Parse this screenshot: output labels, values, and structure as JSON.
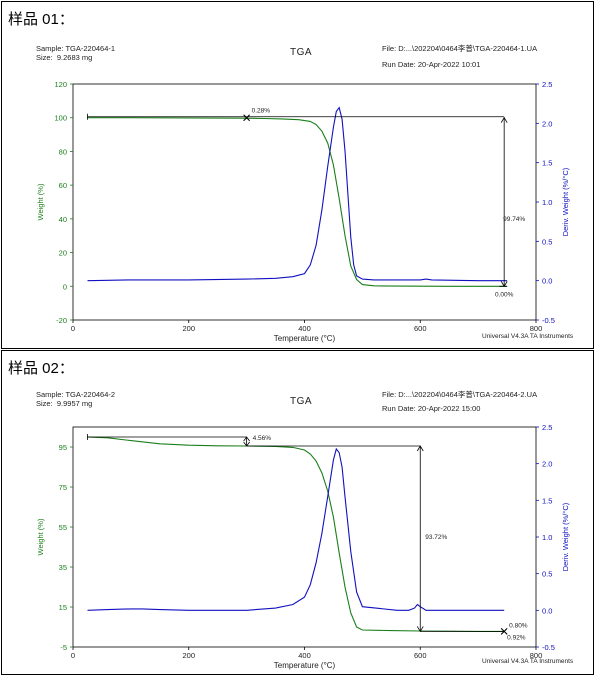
{
  "charts": [
    {
      "panel_title": "样品 01：",
      "sample_label": "Sample: TGA-220464-1",
      "size_label": "Size:  9.2683 mg",
      "header_center": "TGA",
      "file_label": "File: D:...\\202204\\0464李普\\TGA-220464-1.UA",
      "run_date_label": "Run Date: 20-Apr-2022 10:01",
      "footer_label": "Universal V4.3A TA Instruments"
    },
    {
      "panel_title": "样品 02：",
      "sample_label": "Sample: TGA-220464-2",
      "size_label": "Size:  9.9957 mg",
      "header_center": "TGA",
      "file_label": "File: D:...\\202204\\0464李普\\TGA-220464-2.UA",
      "run_date_label": "Run Date: 20-Apr-2022 15:00",
      "footer_label": "Universal V4.3A TA Instruments"
    }
  ],
  "colors": {
    "weight": "#1a7f1a",
    "deriv": "#1010c0",
    "annot": "#000000",
    "frame": "#000000"
  },
  "chart_data": [
    {
      "type": "line",
      "xlabel": "Temperature (°C)",
      "ylabel": "Weight (%)",
      "y2label": "Deriv. Weight (%/°C)",
      "xlim": [
        0,
        800
      ],
      "ylim": [
        -20,
        120
      ],
      "y2lim": [
        -0.5,
        2.5
      ],
      "xticks": [
        0,
        200,
        400,
        600,
        800
      ],
      "yticks": [
        -20,
        0,
        20,
        40,
        60,
        80,
        100,
        120
      ],
      "y2ticks": [
        -0.5,
        0.0,
        0.5,
        1.0,
        1.5,
        2.0,
        2.5
      ],
      "series": [
        {
          "axis": "left",
          "color": "#1a7f1a",
          "x": [
            25,
            100,
            200,
            300,
            330,
            360,
            390,
            410,
            420,
            430,
            440,
            450,
            460,
            470,
            480,
            490,
            500,
            520,
            560,
            650,
            750
          ],
          "values": [
            100,
            100,
            99.9,
            99.72,
            99.55,
            99.3,
            98.8,
            97.8,
            96,
            92,
            85,
            72,
            52,
            30,
            12,
            4,
            1,
            0.3,
            0.1,
            0.0,
            0.0
          ]
        },
        {
          "axis": "right",
          "color": "#1010c0",
          "x": [
            25,
            100,
            200,
            300,
            350,
            380,
            400,
            410,
            420,
            430,
            440,
            450,
            455,
            460,
            465,
            470,
            475,
            480,
            485,
            490,
            500,
            520,
            600,
            610,
            620,
            700,
            750
          ],
          "values": [
            0.0,
            0.01,
            0.01,
            0.02,
            0.03,
            0.05,
            0.09,
            0.2,
            0.45,
            0.9,
            1.45,
            1.95,
            2.15,
            2.2,
            2.05,
            1.65,
            1.1,
            0.55,
            0.2,
            0.06,
            0.02,
            0.01,
            0.01,
            0.02,
            0.01,
            0.0,
            0.0
          ]
        }
      ],
      "annotations": [
        {
          "text": "0.28%",
          "x": 300,
          "y": 100
        },
        {
          "text": "99.74%",
          "x": 745,
          "y": 50
        },
        {
          "text": "0.00%",
          "x": 745,
          "y": -5
        }
      ]
    },
    {
      "type": "line",
      "xlabel": "Temperature (°C)",
      "ylabel": "Weight (%)",
      "y2label": "Deriv. Weight (%/°C)",
      "xlim": [
        0,
        800
      ],
      "ylim": [
        -5,
        105
      ],
      "y2lim": [
        -0.5,
        2.5
      ],
      "xticks": [
        0,
        200,
        400,
        600,
        800
      ],
      "yticks": [
        -5,
        15,
        35,
        55,
        75,
        95
      ],
      "y2ticks": [
        -0.5,
        0.0,
        0.5,
        1.0,
        1.5,
        2.0,
        2.5
      ],
      "series": [
        {
          "axis": "left",
          "color": "#1a7f1a",
          "x": [
            25,
            60,
            100,
            150,
            200,
            250,
            300,
            350,
            380,
            400,
            410,
            420,
            430,
            440,
            450,
            460,
            470,
            480,
            490,
            500,
            550,
            600,
            650,
            700,
            745
          ],
          "values": [
            100,
            99.6,
            98.2,
            96.6,
            95.9,
            95.6,
            95.5,
            95.3,
            94.8,
            93.5,
            91.5,
            88,
            82,
            73,
            60,
            42,
            25,
            12,
            5,
            3.5,
            3.2,
            3,
            2.9,
            2.8,
            2.8
          ]
        },
        {
          "axis": "right",
          "color": "#1010c0",
          "x": [
            25,
            60,
            100,
            120,
            150,
            200,
            250,
            300,
            350,
            380,
            400,
            410,
            420,
            430,
            440,
            450,
            455,
            460,
            465,
            470,
            480,
            490,
            500,
            560,
            580,
            590,
            595,
            600,
            610,
            650,
            700,
            745
          ],
          "values": [
            0.0,
            0.01,
            0.02,
            0.02,
            0.01,
            0.0,
            0.0,
            0.0,
            0.03,
            0.08,
            0.18,
            0.35,
            0.65,
            1.05,
            1.55,
            2.05,
            2.2,
            2.15,
            1.95,
            1.55,
            0.8,
            0.25,
            0.05,
            0.0,
            0.0,
            0.03,
            0.08,
            0.05,
            0.0,
            0.0,
            0.0,
            0.0
          ]
        }
      ],
      "annotations": [
        {
          "text": "4.56%",
          "x": 300,
          "y": 98
        },
        {
          "text": "93.72%",
          "x": 600,
          "y": 50
        },
        {
          "text": "0.80%",
          "x": 745,
          "y": 3
        },
        {
          "text": "0.92%",
          "x": 745,
          "y": 1.5
        }
      ]
    }
  ]
}
